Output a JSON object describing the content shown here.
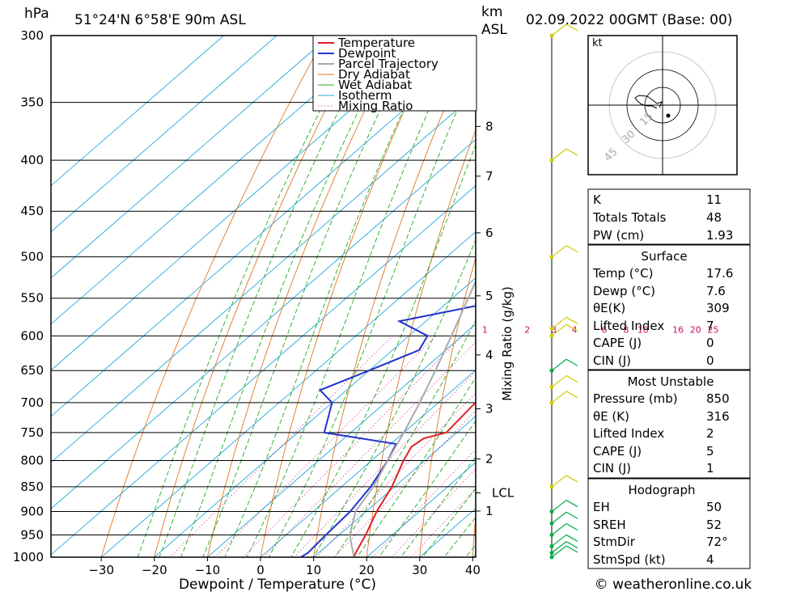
{
  "chart_data": {
    "type": "line",
    "title": "51°24'N 6°58'E 90m ASL",
    "date": "02.09.2022 00GMT (Base: 00)",
    "xlabel": "Dewpoint / Temperature (°C)",
    "ylabel": "hPa",
    "km_label": [
      "km",
      "ASL"
    ],
    "mixing_ratio_label": "Mixing Ratio (g/kg)",
    "xlim": [
      -40,
      40
    ],
    "ylim": [
      1000,
      300
    ],
    "x_ticks": [
      -30,
      -20,
      -10,
      0,
      10,
      20,
      30,
      40
    ],
    "pressure_levels": [
      300,
      350,
      400,
      450,
      500,
      550,
      600,
      650,
      700,
      750,
      800,
      850,
      900,
      950,
      1000
    ],
    "km_ticks": [
      {
        "label": "8",
        "p": 370
      },
      {
        "label": "7",
        "p": 415
      },
      {
        "label": "6",
        "p": 473
      },
      {
        "label": "5",
        "p": 547
      },
      {
        "label": "4",
        "p": 627
      },
      {
        "label": "3",
        "p": 710
      },
      {
        "label": "2",
        "p": 797
      },
      {
        "label": "LCL",
        "p": 862
      },
      {
        "label": "1",
        "p": 899
      }
    ],
    "mixing_ratio_labels": [
      {
        "label": "1",
        "t": -5.7
      },
      {
        "label": "2",
        "t": 2.3
      },
      {
        "label": "3",
        "t": 7.3
      },
      {
        "label": "4",
        "t": 11.2
      },
      {
        "label": "6",
        "t": 16.8
      },
      {
        "label": "8",
        "t": 20.9
      },
      {
        "label": "10",
        "t": 24.1
      },
      {
        "label": "16",
        "t": 30.7
      },
      {
        "label": "20",
        "t": 34.0
      },
      {
        "label": "25",
        "t": 37.3
      }
    ],
    "legend": [
      "Temperature",
      "Dewpoint",
      "Parcel Trajectory",
      "Dry Adiabat",
      "Wet Adiabat",
      "Isotherm",
      "Mixing Ratio"
    ],
    "series": [
      {
        "name": "Temperature",
        "p": [
          1000,
          990,
          950,
          900,
          850,
          800,
          775,
          760,
          750,
          700,
          650,
          600,
          550,
          520,
          450,
          400,
          390,
          350,
          300
        ],
        "t": [
          17.6,
          17.0,
          15.0,
          12.0,
          9.5,
          6.0,
          4.5,
          5.0,
          8.0,
          7.0,
          5.5,
          0.0,
          -5.5,
          -7.0,
          -12.5,
          -17.0,
          -17.0,
          -22.0,
          -28.5
        ]
      },
      {
        "name": "Dewpoint",
        "p": [
          1000,
          990,
          950,
          900,
          850,
          800,
          770,
          750,
          700,
          680,
          650,
          620,
          600,
          580,
          553,
          530,
          500,
          450,
          425,
          410,
          400,
          375,
          350,
          300
        ],
        "t": [
          7.6,
          8.0,
          7.5,
          7.0,
          5.5,
          3.0,
          1.0,
          -15.0,
          -20.0,
          -25.0,
          -20.0,
          -15.0,
          -16.5,
          -25.0,
          -10.0,
          -14.0,
          -13.5,
          -18.0,
          -21.5,
          -21.5,
          -30.0,
          -23.0,
          -34.0,
          -41.0
        ]
      },
      {
        "name": "Parcel Trajectory",
        "p": [
          1000,
          950,
          900,
          850,
          800,
          750,
          700,
          650,
          600,
          550,
          500,
          450,
          400,
          350,
          300
        ],
        "t": [
          17.6,
          12.0,
          8.0,
          6.0,
          3.0,
          0.0,
          -3.5,
          -7.5,
          -12.0,
          -17.0,
          -22.5,
          -29.0,
          -36.5,
          -45.5,
          -56.0
        ]
      }
    ],
    "wind_barbs": [
      {
        "p": 1000,
        "color": "#00aa44"
      },
      {
        "p": 990,
        "color": "#00aa44"
      },
      {
        "p": 975,
        "color": "#00aa44"
      },
      {
        "p": 950,
        "color": "#00aa44"
      },
      {
        "p": 925,
        "color": "#00aa44"
      },
      {
        "p": 900,
        "color": "#00aa44"
      },
      {
        "p": 850,
        "color": "#cccc00"
      },
      {
        "p": 700,
        "color": "#cccc00"
      },
      {
        "p": 675,
        "color": "#cccc00"
      },
      {
        "p": 650,
        "color": "#00aa44"
      },
      {
        "p": 600,
        "color": "#cccc00"
      },
      {
        "p": 590,
        "color": "#cccc00"
      },
      {
        "p": 500,
        "color": "#cccc00"
      },
      {
        "p": 400,
        "color": "#cccc00"
      },
      {
        "p": 300,
        "color": "#cccc00"
      }
    ],
    "hodograph": {
      "unit": "kt",
      "ring_labels": [
        "15",
        "30",
        "45"
      ]
    },
    "indices": {
      "general": [
        {
          "label": "K",
          "value": "11"
        },
        {
          "label": "Totals Totals",
          "value": "48"
        },
        {
          "label": "PW (cm)",
          "value": "1.93"
        }
      ],
      "surface_title": "Surface",
      "surface": [
        {
          "label": "Temp (°C)",
          "value": "17.6"
        },
        {
          "label": "Dewp (°C)",
          "value": "7.6"
        },
        {
          "label": "θE(K)",
          "value": "309"
        },
        {
          "label": "Lifted Index",
          "value": "7"
        },
        {
          "label": "CAPE (J)",
          "value": "0"
        },
        {
          "label": "CIN (J)",
          "value": "0"
        }
      ],
      "most_unstable_title": "Most Unstable",
      "most_unstable": [
        {
          "label": "Pressure (mb)",
          "value": "850"
        },
        {
          "label": "θE (K)",
          "value": "316"
        },
        {
          "label": "Lifted Index",
          "value": "2"
        },
        {
          "label": "CAPE (J)",
          "value": "5"
        },
        {
          "label": "CIN (J)",
          "value": "1"
        }
      ],
      "hodograph_title": "Hodograph",
      "hodograph": [
        {
          "label": "EH",
          "value": "50"
        },
        {
          "label": "SREH",
          "value": "52"
        },
        {
          "label": "StmDir",
          "value": "72°"
        },
        {
          "label": "StmSpd (kt)",
          "value": "4"
        }
      ]
    },
    "footer": "© weatheronline.co.uk",
    "colors": {
      "temperature": "#dd2222",
      "dewpoint": "#2233cc",
      "parcel": "#aaaaaa",
      "dry_adiabat": "#dd7722",
      "wet_adiabat": "#22aa22",
      "isotherm": "#22aadd",
      "mixing_ratio": "#cc1166"
    }
  }
}
